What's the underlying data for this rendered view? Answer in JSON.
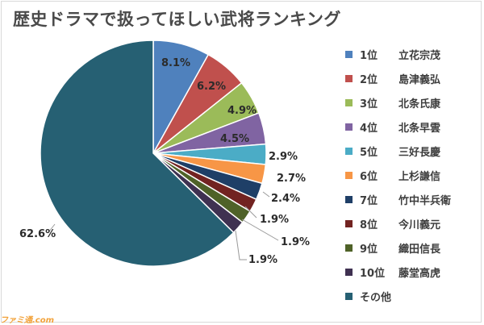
{
  "chart_data": {
    "type": "pie",
    "title": "歴史ドラマで扱ってほしい武将ランキング",
    "labels": [
      "1位 立花宗茂",
      "2位 島津義弘",
      "3位 北条氏康",
      "4位 北条早雲",
      "5位 三好長慶",
      "6位 上杉謙信",
      "7位 竹中半兵衛",
      "8位 今川義元",
      "9位 織田信長",
      "10位 藤堂高虎",
      "その他"
    ],
    "values": [
      8.1,
      6.2,
      4.9,
      4.5,
      2.9,
      2.7,
      2.4,
      1.9,
      1.9,
      1.9,
      62.6
    ],
    "value_labels": [
      "8.1%",
      "6.2%",
      "4.9%",
      "4.5%",
      "2.9%",
      "2.7%",
      "2.4%",
      "1.9%",
      "1.9%",
      "1.9%",
      "62.6%"
    ],
    "colors": [
      "#4F81BD",
      "#C0504D",
      "#9BBB59",
      "#8064A2",
      "#4BACC6",
      "#F79646",
      "#1F3F67",
      "#722321",
      "#4F6228",
      "#3F3151",
      "#266073"
    ],
    "legend_position": "right",
    "start_angle": "12 o'clock",
    "direction": "clockwise"
  },
  "legend": {
    "items": [
      {
        "rank": "1位",
        "name": "立花宗茂"
      },
      {
        "rank": "2位",
        "name": "島津義弘"
      },
      {
        "rank": "3位",
        "name": "北条氏康"
      },
      {
        "rank": "4位",
        "name": "北条早雲"
      },
      {
        "rank": "5位",
        "name": "三好長慶"
      },
      {
        "rank": "6位",
        "name": "上杉謙信"
      },
      {
        "rank": "7位",
        "name": "竹中半兵衛"
      },
      {
        "rank": "8位",
        "name": "今川義元"
      },
      {
        "rank": "9位",
        "name": "織田信長"
      },
      {
        "rank": "10位",
        "name": "藤堂高虎"
      },
      {
        "rank": "",
        "name": "その他"
      }
    ]
  },
  "watermark": {
    "text": "ファミ通.com"
  }
}
